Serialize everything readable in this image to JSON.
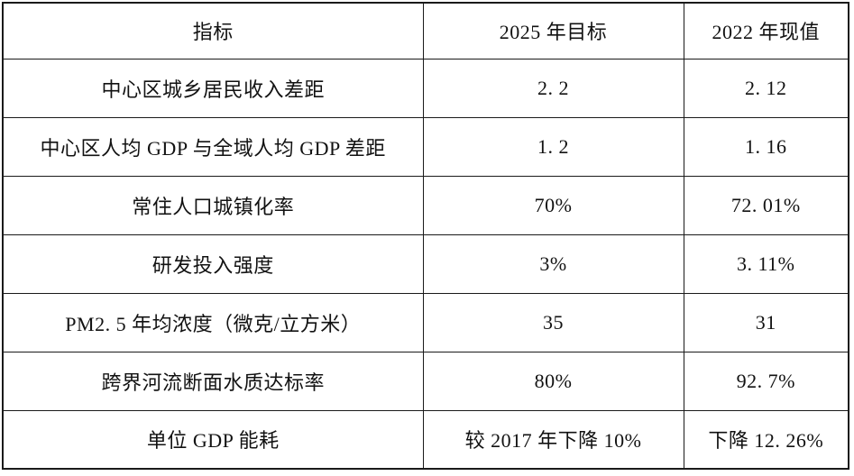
{
  "colors": {
    "background": "#ffffff",
    "border": "#1a1a1a",
    "text": "#121212"
  },
  "table": {
    "headers": {
      "indicator": "指标",
      "target_2025": "2025 年目标",
      "current_2022": "2022 年现值"
    },
    "rows": [
      {
        "indicator": "中心区城乡居民收入差距",
        "target_2025": "2. 2",
        "current_2022": "2. 12"
      },
      {
        "indicator": "中心区人均 GDP 与全域人均 GDP 差距",
        "target_2025": "1. 2",
        "current_2022": "1. 16"
      },
      {
        "indicator": "常住人口城镇化率",
        "target_2025": "70%",
        "current_2022": "72. 01%"
      },
      {
        "indicator": "研发投入强度",
        "target_2025": "3%",
        "current_2022": "3. 11%"
      },
      {
        "indicator": "PM2. 5 年均浓度（微克/立方米）",
        "target_2025": "35",
        "current_2022": "31"
      },
      {
        "indicator": "跨界河流断面水质达标率",
        "target_2025": "80%",
        "current_2022": "92. 7%"
      },
      {
        "indicator": "单位 GDP 能耗",
        "target_2025": "较 2017 年下降 10%",
        "current_2022": "下降 12. 26%"
      }
    ]
  }
}
